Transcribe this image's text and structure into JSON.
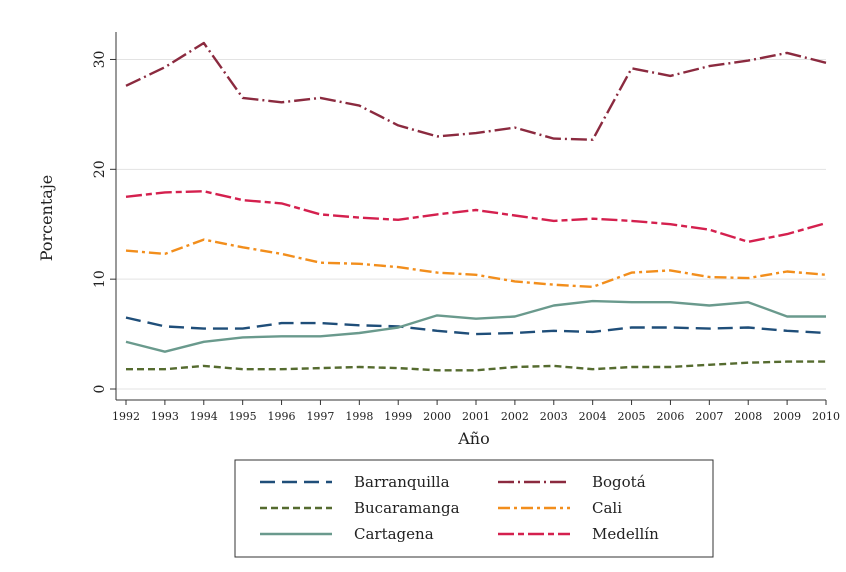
{
  "chart_data": {
    "type": "line",
    "title": "",
    "xlabel": "Año",
    "ylabel": "Porcentaje",
    "x": [
      1992,
      1993,
      1994,
      1995,
      1996,
      1997,
      1998,
      1999,
      2000,
      2001,
      2002,
      2003,
      2004,
      2005,
      2006,
      2007,
      2008,
      2009,
      2010
    ],
    "xlim": [
      1992,
      2010
    ],
    "ylim": [
      -1,
      32.5
    ],
    "yticks": [
      0,
      10,
      20,
      30
    ],
    "grid": true,
    "legend_position": "bottom",
    "series": [
      {
        "name": "Barranquilla",
        "color": "#1f4e79",
        "dash": "long-dash",
        "values": [
          6.5,
          5.7,
          5.5,
          5.5,
          6.0,
          6.0,
          5.8,
          5.7,
          5.3,
          5.0,
          5.1,
          5.3,
          5.2,
          5.6,
          5.6,
          5.5,
          5.6,
          5.3,
          5.1
        ]
      },
      {
        "name": "Bogotá",
        "color": "#8b2a3f",
        "dash": "dash-dot",
        "values": [
          27.6,
          29.3,
          31.5,
          26.5,
          26.1,
          26.5,
          25.8,
          24.0,
          23.0,
          23.3,
          23.8,
          22.8,
          22.7,
          29.2,
          28.5,
          29.4,
          29.9,
          30.6,
          29.7
        ]
      },
      {
        "name": "Bucaramanga",
        "color": "#556b2f",
        "dash": "short-dash",
        "values": [
          1.8,
          1.8,
          2.1,
          1.8,
          1.8,
          1.9,
          2.0,
          1.9,
          1.7,
          1.7,
          2.0,
          2.1,
          1.8,
          2.0,
          2.0,
          2.2,
          2.4,
          2.5,
          2.5
        ]
      },
      {
        "name": "Cali",
        "color": "#f28e1c",
        "dash": "long-dash-dot",
        "values": [
          12.6,
          12.3,
          13.6,
          12.9,
          12.3,
          11.5,
          11.4,
          11.1,
          10.6,
          10.4,
          9.8,
          9.5,
          9.3,
          10.6,
          10.8,
          10.2,
          10.1,
          10.7,
          10.4
        ]
      },
      {
        "name": "Cartagena",
        "color": "#6a9a8d",
        "dash": "solid",
        "values": [
          4.3,
          3.4,
          4.3,
          4.7,
          4.8,
          4.8,
          5.1,
          5.6,
          6.7,
          6.4,
          6.6,
          7.6,
          8.0,
          7.9,
          7.9,
          7.6,
          7.9,
          6.6,
          6.6
        ]
      },
      {
        "name": "Medellín",
        "color": "#d4204e",
        "dash": "long-short-dash",
        "values": [
          17.5,
          17.9,
          18.0,
          17.2,
          16.9,
          15.9,
          15.6,
          15.4,
          15.9,
          16.3,
          15.8,
          15.3,
          15.5,
          15.3,
          15.0,
          14.5,
          13.4,
          14.1,
          15.1
        ]
      }
    ]
  }
}
